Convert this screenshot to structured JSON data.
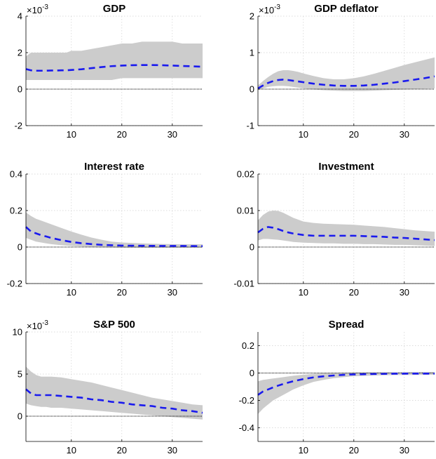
{
  "figure": {
    "layout": "3x2 grid",
    "colors": {
      "band": "#cccccc",
      "median": "#1a1aee",
      "zero": "#000000",
      "grid": "#d0d0d0",
      "axis": "#000000"
    }
  },
  "chart_data": [
    {
      "type": "area",
      "title": "GDP",
      "exponent": "×10",
      "exponent_power": "-3",
      "xlabel": "",
      "ylabel": "",
      "xlim": [
        1,
        36
      ],
      "ylim": [
        -0.002,
        0.004
      ],
      "xticks": [
        10,
        20,
        30
      ],
      "xticklabels": [
        "10",
        "20",
        "30"
      ],
      "yticks": [
        -0.002,
        0,
        0.002,
        0.004
      ],
      "yticklabels": [
        "-2",
        "0",
        "2",
        "4"
      ],
      "grid": true,
      "x": [
        1,
        2,
        3,
        4,
        5,
        6,
        7,
        8,
        9,
        10,
        12,
        14,
        16,
        18,
        20,
        22,
        24,
        26,
        28,
        30,
        32,
        34,
        36
      ],
      "series": [
        {
          "name": "upper",
          "values": [
            0.0018,
            0.002,
            0.002,
            0.002,
            0.002,
            0.002,
            0.002,
            0.002,
            0.002,
            0.0021,
            0.0021,
            0.0022,
            0.0023,
            0.0024,
            0.0025,
            0.0025,
            0.0026,
            0.0026,
            0.0026,
            0.0026,
            0.0025,
            0.0025,
            0.0025
          ]
        },
        {
          "name": "lower",
          "values": [
            0.0005,
            0.0005,
            0.0005,
            0.0005,
            0.0005,
            0.0005,
            0.0005,
            0.0005,
            0.0005,
            0.0005,
            0.0005,
            0.0005,
            0.0005,
            0.0005,
            0.0006,
            0.0006,
            0.0006,
            0.0006,
            0.0006,
            0.0006,
            0.0006,
            0.0006,
            0.0006
          ]
        },
        {
          "name": "median",
          "values": [
            0.0011,
            0.00103,
            0.00101,
            0.00101,
            0.00101,
            0.00102,
            0.00102,
            0.00103,
            0.00103,
            0.00105,
            0.00109,
            0.00115,
            0.00121,
            0.00126,
            0.00129,
            0.00131,
            0.00132,
            0.00132,
            0.00131,
            0.00129,
            0.00127,
            0.00125,
            0.00123
          ]
        }
      ]
    },
    {
      "type": "area",
      "title": "GDP deflator",
      "exponent": "×10",
      "exponent_power": "-3",
      "xlabel": "",
      "ylabel": "",
      "xlim": [
        1,
        36
      ],
      "ylim": [
        -0.001,
        0.002
      ],
      "xticks": [
        10,
        20,
        30
      ],
      "xticklabels": [
        "10",
        "20",
        "30"
      ],
      "yticks": [
        -0.001,
        0,
        0.001,
        0.002
      ],
      "yticklabels": [
        "-1",
        "0",
        "1",
        "2"
      ],
      "grid": true,
      "x": [
        1,
        2,
        3,
        4,
        5,
        6,
        7,
        8,
        9,
        10,
        12,
        14,
        16,
        18,
        20,
        22,
        24,
        26,
        28,
        30,
        32,
        34,
        36
      ],
      "series": [
        {
          "name": "upper",
          "values": [
            0.0001,
            0.00022,
            0.00033,
            0.00042,
            0.00049,
            0.00052,
            0.00052,
            0.0005,
            0.00047,
            0.00043,
            0.00036,
            0.0003,
            0.00027,
            0.00027,
            0.0003,
            0.00035,
            0.00042,
            0.0005,
            0.00058,
            0.00066,
            0.00073,
            0.0008,
            0.00087
          ]
        },
        {
          "name": "lower",
          "values": [
            -2e-05,
            2e-05,
            6e-05,
            8e-05,
            9e-05,
            9e-05,
            8e-05,
            6e-05,
            4e-05,
            2e-05,
            -1e-05,
            -3e-05,
            -4e-05,
            -5e-05,
            -5e-05,
            -5e-05,
            -4e-05,
            -3e-05,
            -2e-05,
            -1e-05,
            0.0,
            1e-05,
            2e-05
          ]
        },
        {
          "name": "median",
          "values": [
            2e-05,
            0.0001,
            0.00017,
            0.00022,
            0.00025,
            0.00026,
            0.00025,
            0.00023,
            0.00021,
            0.00019,
            0.00015,
            0.00012,
            0.0001,
            9e-05,
            9e-05,
            0.0001,
            0.00012,
            0.00015,
            0.00018,
            0.00022,
            0.00026,
            0.0003,
            0.00035
          ]
        }
      ]
    },
    {
      "type": "area",
      "title": "Interest rate",
      "xlabel": "",
      "ylabel": "",
      "xlim": [
        1,
        36
      ],
      "ylim": [
        -0.2,
        0.4
      ],
      "xticks": [
        10,
        20,
        30
      ],
      "xticklabels": [
        "10",
        "20",
        "30"
      ],
      "yticks": [
        -0.2,
        0,
        0.2,
        0.4
      ],
      "yticklabels": [
        "-0.2",
        "0",
        "0.2",
        "0.4"
      ],
      "grid": true,
      "x": [
        1,
        2,
        3,
        4,
        5,
        6,
        8,
        10,
        12,
        14,
        16,
        18,
        20,
        24,
        28,
        32,
        36
      ],
      "series": [
        {
          "name": "upper",
          "values": [
            0.19,
            0.17,
            0.155,
            0.145,
            0.135,
            0.125,
            0.105,
            0.085,
            0.068,
            0.052,
            0.04,
            0.03,
            0.025,
            0.02,
            0.017,
            0.015,
            0.015
          ]
        },
        {
          "name": "lower",
          "values": [
            0.05,
            0.04,
            0.03,
            0.025,
            0.02,
            0.016,
            0.01,
            0.006,
            0.003,
            0.0,
            -0.002,
            -0.003,
            -0.004,
            -0.004,
            -0.004,
            -0.004,
            -0.004
          ]
        },
        {
          "name": "median",
          "values": [
            0.11,
            0.085,
            0.075,
            0.065,
            0.058,
            0.05,
            0.038,
            0.028,
            0.021,
            0.016,
            0.012,
            0.01,
            0.008,
            0.007,
            0.006,
            0.006,
            0.005
          ]
        }
      ]
    },
    {
      "type": "area",
      "title": "Investment",
      "xlabel": "",
      "ylabel": "",
      "xlim": [
        1,
        36
      ],
      "ylim": [
        -0.01,
        0.02
      ],
      "xticks": [
        10,
        20,
        30
      ],
      "xticklabels": [
        "10",
        "20",
        "30"
      ],
      "yticks": [
        -0.01,
        0,
        0.01,
        0.02
      ],
      "yticklabels": [
        "-0.01",
        "0",
        "0.01",
        "0.02"
      ],
      "grid": true,
      "x": [
        1,
        2,
        3,
        4,
        5,
        6,
        7,
        8,
        10,
        12,
        14,
        16,
        18,
        20,
        22,
        24,
        26,
        28,
        30,
        32,
        34,
        36
      ],
      "series": [
        {
          "name": "upper",
          "values": [
            0.0073,
            0.0088,
            0.0097,
            0.01,
            0.0099,
            0.0094,
            0.0087,
            0.008,
            0.007,
            0.0066,
            0.0064,
            0.0063,
            0.0062,
            0.0061,
            0.0059,
            0.0057,
            0.0055,
            0.0052,
            0.0049,
            0.0046,
            0.0044,
            0.0042
          ]
        },
        {
          "name": "lower",
          "values": [
            0.0018,
            0.0022,
            0.0022,
            0.0021,
            0.002,
            0.0018,
            0.0016,
            0.0014,
            0.0012,
            0.0011,
            0.001,
            0.001,
            0.0009,
            0.0009,
            0.0008,
            0.0008,
            0.0007,
            0.0006,
            0.0006,
            0.0005,
            0.0004,
            0.0003
          ]
        },
        {
          "name": "median",
          "values": [
            0.004,
            0.005,
            0.0055,
            0.0053,
            0.0049,
            0.0044,
            0.004,
            0.0037,
            0.0033,
            0.0031,
            0.0031,
            0.0031,
            0.0031,
            0.0031,
            0.003,
            0.0029,
            0.0028,
            0.0026,
            0.0025,
            0.0023,
            0.0021,
            0.0019
          ]
        }
      ]
    },
    {
      "type": "area",
      "title": "S&P 500",
      "exponent": "×10",
      "exponent_power": "-3",
      "xlabel": "",
      "ylabel": "",
      "xlim": [
        1,
        36
      ],
      "ylim": [
        -0.003,
        0.01
      ],
      "xticks": [
        10,
        20,
        30
      ],
      "xticklabels": [
        "10",
        "20",
        "30"
      ],
      "yticks": [
        0,
        0.005,
        0.01
      ],
      "yticklabels": [
        "0",
        "5",
        "10"
      ],
      "grid": true,
      "x": [
        1,
        2,
        3,
        4,
        5,
        6,
        8,
        10,
        12,
        14,
        16,
        18,
        20,
        22,
        24,
        26,
        28,
        30,
        32,
        34,
        36
      ],
      "series": [
        {
          "name": "upper",
          "values": [
            0.0059,
            0.0053,
            0.0049,
            0.0047,
            0.0047,
            0.0047,
            0.0046,
            0.0044,
            0.0042,
            0.004,
            0.0037,
            0.0034,
            0.0031,
            0.0028,
            0.0025,
            0.0022,
            0.002,
            0.0018,
            0.0016,
            0.0014,
            0.0013
          ]
        },
        {
          "name": "lower",
          "values": [
            0.0015,
            0.0013,
            0.0012,
            0.0011,
            0.0011,
            0.001,
            0.001,
            0.0009,
            0.0008,
            0.0007,
            0.0006,
            0.0005,
            0.0004,
            0.0003,
            0.0002,
            0.0001,
            0.0,
            -0.0001,
            -0.0002,
            -0.0003,
            -0.0004
          ]
        },
        {
          "name": "median",
          "values": [
            0.0032,
            0.0027,
            0.0025,
            0.0025,
            0.0025,
            0.0025,
            0.0024,
            0.0023,
            0.0022,
            0.002,
            0.0019,
            0.0017,
            0.0016,
            0.0014,
            0.0013,
            0.0012,
            0.001,
            0.0009,
            0.0007,
            0.0006,
            0.0004
          ]
        }
      ]
    },
    {
      "type": "area",
      "title": "Spread",
      "xlabel": "",
      "ylabel": "",
      "xlim": [
        1,
        36
      ],
      "ylim": [
        -0.5,
        0.3
      ],
      "xticks": [
        10,
        20,
        30
      ],
      "xticklabels": [
        "10",
        "20",
        "30"
      ],
      "yticks": [
        -0.4,
        -0.2,
        0,
        0.2
      ],
      "yticklabels": [
        "-0.4",
        "-0.2",
        "0",
        "0.2"
      ],
      "grid": true,
      "x": [
        1,
        2,
        3,
        4,
        5,
        6,
        8,
        10,
        12,
        14,
        16,
        18,
        20,
        24,
        28,
        32,
        36
      ],
      "series": [
        {
          "name": "upper",
          "values": [
            -0.06,
            -0.05,
            -0.045,
            -0.04,
            -0.035,
            -0.03,
            -0.02,
            -0.012,
            -0.006,
            -0.002,
            0.0,
            0.002,
            0.004,
            0.006,
            0.006,
            0.007,
            0.008
          ]
        },
        {
          "name": "lower",
          "values": [
            -0.3,
            -0.26,
            -0.23,
            -0.2,
            -0.18,
            -0.16,
            -0.12,
            -0.09,
            -0.065,
            -0.05,
            -0.038,
            -0.03,
            -0.024,
            -0.018,
            -0.015,
            -0.014,
            -0.013
          ]
        },
        {
          "name": "median",
          "values": [
            -0.16,
            -0.135,
            -0.12,
            -0.105,
            -0.092,
            -0.08,
            -0.06,
            -0.044,
            -0.032,
            -0.024,
            -0.018,
            -0.013,
            -0.01,
            -0.007,
            -0.005,
            -0.004,
            -0.004
          ]
        }
      ]
    }
  ]
}
